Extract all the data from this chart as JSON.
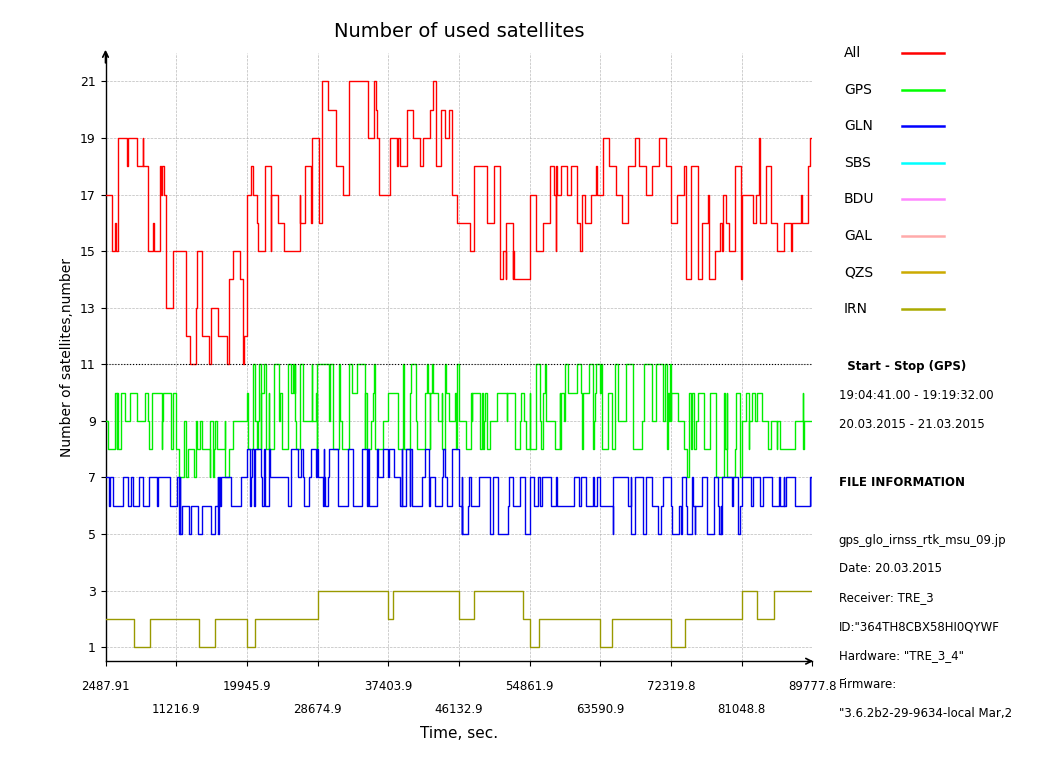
{
  "title": "Number of used satellites",
  "xlabel": "Time, sec.",
  "ylabel": "Number of satellites,number",
  "xlim": [
    2487.91,
    89777.8
  ],
  "ylim": [
    0.5,
    22
  ],
  "yticks": [
    1,
    3,
    5,
    7,
    9,
    11,
    13,
    15,
    17,
    19,
    21
  ],
  "xticks_row1": [
    2487.91,
    19945.9,
    37403.9,
    54861.9,
    72319.8,
    89777.8
  ],
  "xticks_row2": [
    11216.9,
    28674.9,
    46132.9,
    63590.9,
    81048.8
  ],
  "xlabels_row1": [
    "2487.91",
    "19945.9",
    "37403.9",
    "54861.9",
    "72319.8",
    "89777.8"
  ],
  "xlabels_row2": [
    "11216.9",
    "28674.9",
    "46132.9",
    "63590.9",
    "81048.8"
  ],
  "legend_labels": [
    "All",
    "GPS",
    "GLN",
    "SBS",
    "BDU",
    "GAL",
    "QZS",
    "IRN"
  ],
  "legend_colors": [
    "#FF0000",
    "#00FF00",
    "#0000FF",
    "#00FFFF",
    "#FF88FF",
    "#FFAAAA",
    "#CCAA00",
    "#AAAA00"
  ],
  "all_color": "#FF0000",
  "gps_color": "#00EE00",
  "gln_color": "#0000EE",
  "irn_color": "#999900",
  "hline_y": 11,
  "hline_color": "#000000",
  "grid_color": "#AAAAAA",
  "grid_linestyle": "--",
  "background_color": "#FFFFFF",
  "info_text_lines": [
    "  Start - Stop (GPS)",
    "19:04:41.00 - 19:19:32.00",
    "20.03.2015 - 21.03.2015",
    "",
    "FILE INFORMATION",
    "",
    "gps_glo_irnss_rtk_msu_09.jp",
    "Date: 20.03.2015",
    "Receiver: TRE_3",
    "ID:\"364TH8CBX58HI0QYWF",
    "Hardware: \"TRE_3_4\"",
    "Firmware:",
    "\"3.6.2b2-29-9634-local Mar,2"
  ]
}
